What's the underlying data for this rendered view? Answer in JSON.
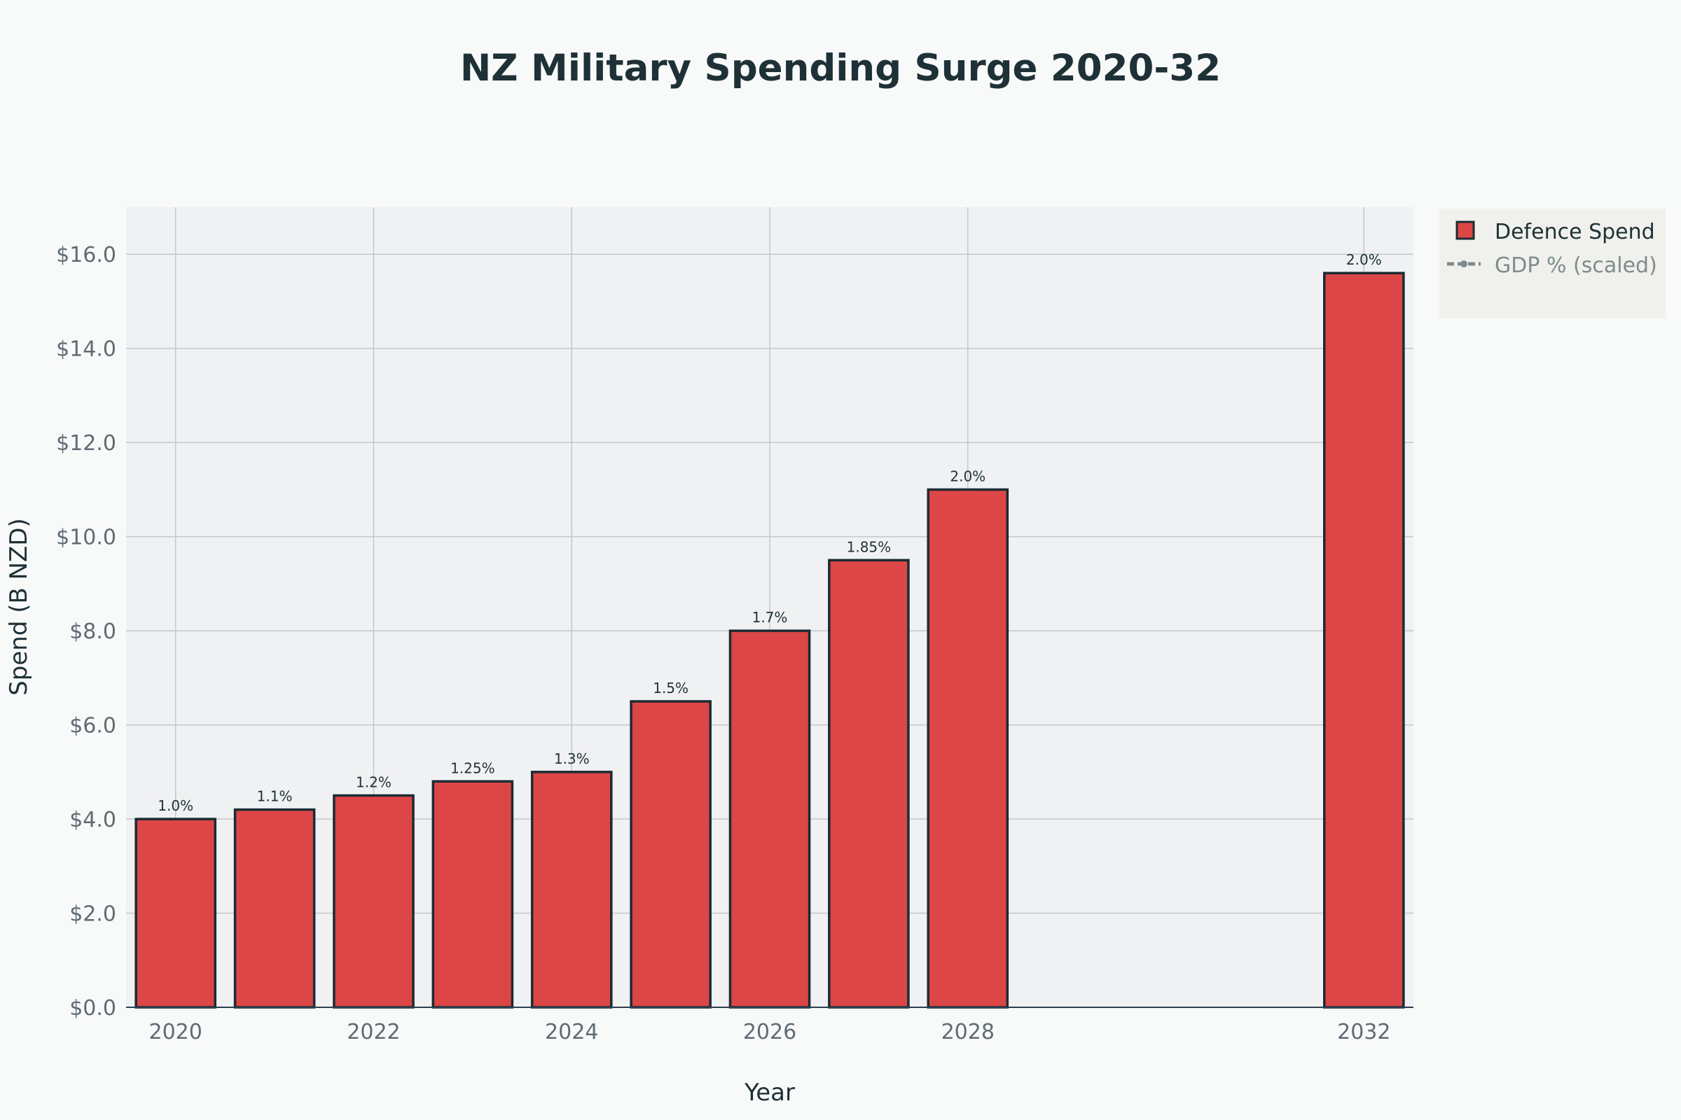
{
  "chart_data": {
    "type": "bar",
    "title": "NZ Military Spending Surge 2020-32",
    "xlabel": "Year",
    "ylabel": "Spend (B NZD)",
    "x": [
      2020,
      2021,
      2022,
      2023,
      2024,
      2025,
      2026,
      2027,
      2028,
      2032
    ],
    "xlim": [
      2019.5,
      2032.5
    ],
    "xticks": [
      "2020",
      "2022",
      "2024",
      "2026",
      "2028",
      "2032"
    ],
    "ylim": [
      0,
      17
    ],
    "yticks": [
      "$0.0",
      "$2.0",
      "$4.0",
      "$6.0",
      "$8.0",
      "$10.0",
      "$12.0",
      "$14.0",
      "$16.0"
    ],
    "grid": true,
    "legend_position": "top-right",
    "series": [
      {
        "name": "Defence Spend",
        "color": "#dc4646",
        "outline": "#1b2b33",
        "values": [
          4.0,
          4.2,
          4.5,
          4.8,
          5.0,
          6.5,
          8.0,
          9.5,
          11.0,
          15.6
        ],
        "data_labels": [
          "1.0%",
          "1.1%",
          "1.2%",
          "1.25%",
          "1.3%",
          "1.5%",
          "1.7%",
          "1.85%",
          "2.0%",
          "2.0%"
        ]
      },
      {
        "name": "GDP % (scaled)",
        "color": "#7f8c8d",
        "type": "line",
        "visible": "legendonly"
      }
    ]
  }
}
